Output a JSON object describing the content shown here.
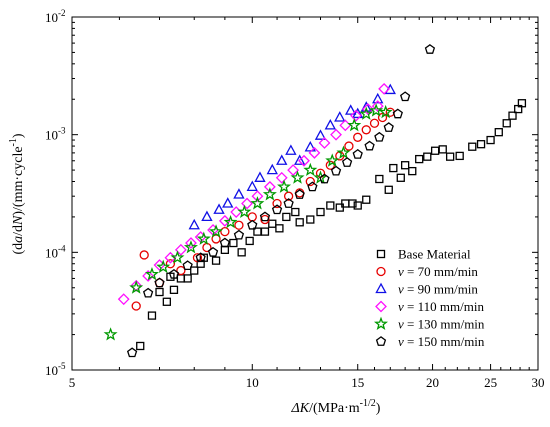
{
  "chart_data": {
    "type": "scatter",
    "title": "",
    "x_axis": {
      "label_italic": "ΔK",
      "label_rest": "/(MPa·m",
      "label_sup": "-1/2",
      "label_close": ")",
      "scale": "log",
      "range": [
        5,
        30
      ],
      "ticks": [
        5,
        10,
        15,
        20,
        25,
        30
      ],
      "tick_labels": [
        "5",
        "10",
        "15",
        "20",
        "25",
        "30"
      ]
    },
    "y_axis": {
      "label_open": "(d",
      "label_a": "a",
      "label_mid": "/d",
      "label_N": "N",
      "label_rest": ")/(mm·cycle",
      "label_sup": "-1",
      "label_close": ")",
      "scale": "log",
      "range": [
        1e-05,
        0.01
      ],
      "ticks": [
        1e-05,
        0.0001,
        0.001,
        0.01
      ],
      "tick_bases": [
        "10",
        "10",
        "10",
        "10"
      ],
      "tick_exps": [
        "-5",
        "-4",
        "-3",
        "-2"
      ]
    },
    "grid": false,
    "legend_position": "bottom-right",
    "series": [
      {
        "name": "Base Material",
        "legend_italic": "",
        "legend_text": "Base Material",
        "marker": "square",
        "color": "#000000",
        "points": [
          [
            6.5,
            1.6e-05
          ],
          [
            6.8,
            2.9e-05
          ],
          [
            7.0,
            4.6e-05
          ],
          [
            7.2,
            3.8e-05
          ],
          [
            7.3,
            6.2e-05
          ],
          [
            7.4,
            4.8e-05
          ],
          [
            7.6,
            6e-05
          ],
          [
            7.8,
            6e-05
          ],
          [
            8.0,
            7e-05
          ],
          [
            8.2,
            8e-05
          ],
          [
            8.3,
            9e-05
          ],
          [
            8.7,
            8.5e-05
          ],
          [
            9.0,
            0.000105
          ],
          [
            9.3,
            0.00012
          ],
          [
            9.6,
            0.0001
          ],
          [
            9.9,
            0.000125
          ],
          [
            10.2,
            0.00015
          ],
          [
            10.5,
            0.00015
          ],
          [
            10.8,
            0.000175
          ],
          [
            11.1,
            0.00016
          ],
          [
            11.4,
            0.0002
          ],
          [
            11.8,
            0.00022
          ],
          [
            12.0,
            0.00018
          ],
          [
            12.5,
            0.00019
          ],
          [
            13.0,
            0.00022
          ],
          [
            13.5,
            0.00025
          ],
          [
            14.0,
            0.00024
          ],
          [
            14.3,
            0.00026
          ],
          [
            14.7,
            0.00026
          ],
          [
            15.0,
            0.00025
          ],
          [
            15.5,
            0.00028
          ],
          [
            16.3,
            0.00042
          ],
          [
            16.9,
            0.00034
          ],
          [
            17.2,
            0.00052
          ],
          [
            17.7,
            0.00043
          ],
          [
            18.0,
            0.00055
          ],
          [
            18.5,
            0.00049
          ],
          [
            19.0,
            0.00062
          ],
          [
            19.6,
            0.00065
          ],
          [
            20.2,
            0.00073
          ],
          [
            20.8,
            0.00075
          ],
          [
            21.4,
            0.00065
          ],
          [
            22.2,
            0.00066
          ],
          [
            23.3,
            0.00079
          ],
          [
            24.1,
            0.00083
          ],
          [
            25.0,
            0.0009
          ],
          [
            25.8,
            0.00105
          ],
          [
            26.6,
            0.00125
          ],
          [
            27.2,
            0.00145
          ],
          [
            27.8,
            0.00165
          ],
          [
            28.2,
            0.00185
          ]
        ]
      },
      {
        "name": "v = 70 mm/min",
        "legend_italic": "v",
        "legend_text": " = 70 mm/min",
        "marker": "circle",
        "color": "#e60000",
        "points": [
          [
            6.4,
            3.5e-05
          ],
          [
            6.6,
            9.5e-05
          ],
          [
            7.0,
            5.5e-05
          ],
          [
            7.3,
            8e-05
          ],
          [
            7.6,
            7e-05
          ],
          [
            8.1,
            9e-05
          ],
          [
            8.4,
            0.00011
          ],
          [
            8.7,
            0.00013
          ],
          [
            9.0,
            0.00015
          ],
          [
            9.5,
            0.00017
          ],
          [
            10.0,
            0.0002
          ],
          [
            10.5,
            0.00019
          ],
          [
            11.0,
            0.00026
          ],
          [
            11.5,
            0.0003
          ],
          [
            12.0,
            0.00032
          ],
          [
            12.5,
            0.0004
          ],
          [
            13.0,
            0.00047
          ],
          [
            13.5,
            0.00055
          ],
          [
            14.0,
            0.00066
          ],
          [
            14.5,
            0.0008
          ],
          [
            15.0,
            0.00095
          ],
          [
            15.5,
            0.0011
          ],
          [
            16.0,
            0.00125
          ],
          [
            16.5,
            0.0014
          ],
          [
            17.0,
            0.00155
          ]
        ]
      },
      {
        "name": "v = 90 mm/min",
        "legend_italic": "v",
        "legend_text": " = 90 mm/min",
        "marker": "triangle",
        "color": "#1010e6",
        "points": [
          [
            8.0,
            0.00017
          ],
          [
            8.4,
            0.0002
          ],
          [
            8.8,
            0.00023
          ],
          [
            9.1,
            0.00026
          ],
          [
            9.5,
            0.00031
          ],
          [
            10.0,
            0.00036
          ],
          [
            10.3,
            0.00043
          ],
          [
            10.8,
            0.0005
          ],
          [
            11.2,
            0.0006
          ],
          [
            11.6,
            0.00073
          ],
          [
            12.0,
            0.0006
          ],
          [
            12.5,
            0.00078
          ],
          [
            13.0,
            0.00098
          ],
          [
            13.5,
            0.0012
          ],
          [
            14.0,
            0.0014
          ],
          [
            14.6,
            0.0016
          ],
          [
            15.0,
            0.0015
          ],
          [
            15.5,
            0.0017
          ],
          [
            16.2,
            0.002
          ],
          [
            17.0,
            0.0024
          ]
        ]
      },
      {
        "name": "v = 110 mm/min",
        "legend_italic": "v",
        "legend_text": " = 110 mm/min",
        "marker": "diamond",
        "color": "#ff10ff",
        "points": [
          [
            6.1,
            4e-05
          ],
          [
            6.4,
            5.2e-05
          ],
          [
            6.7,
            6.3e-05
          ],
          [
            7.0,
            7.8e-05
          ],
          [
            7.3,
            9e-05
          ],
          [
            7.6,
            0.000105
          ],
          [
            7.9,
            0.00012
          ],
          [
            8.2,
            0.000135
          ],
          [
            8.6,
            0.000155
          ],
          [
            9.0,
            0.000185
          ],
          [
            9.4,
            0.00022
          ],
          [
            9.8,
            0.00026
          ],
          [
            10.2,
            0.0003
          ],
          [
            10.7,
            0.00036
          ],
          [
            11.2,
            0.00043
          ],
          [
            11.7,
            0.0005
          ],
          [
            12.2,
            0.0006
          ],
          [
            12.7,
            0.0007
          ],
          [
            13.2,
            0.00085
          ],
          [
            13.8,
            0.001
          ],
          [
            14.3,
            0.0012
          ],
          [
            14.9,
            0.00145
          ],
          [
            15.6,
            0.00165
          ],
          [
            16.2,
            0.00175
          ],
          [
            16.6,
            0.00245
          ]
        ]
      },
      {
        "name": "v = 130 mm/min",
        "legend_italic": "v",
        "legend_text": " = 130 mm/min",
        "marker": "star",
        "color": "#009900",
        "points": [
          [
            5.8,
            2e-05
          ],
          [
            6.4,
            5e-05
          ],
          [
            6.8,
            6.5e-05
          ],
          [
            7.1,
            7.5e-05
          ],
          [
            7.5,
            9e-05
          ],
          [
            7.9,
            0.00011
          ],
          [
            8.3,
            0.00013
          ],
          [
            8.7,
            0.00015
          ],
          [
            9.2,
            0.00018
          ],
          [
            9.7,
            0.00022
          ],
          [
            10.2,
            0.00026
          ],
          [
            10.7,
            0.00031
          ],
          [
            11.3,
            0.00036
          ],
          [
            11.9,
            0.00043
          ],
          [
            12.5,
            0.0005
          ],
          [
            13.0,
            0.00043
          ],
          [
            13.6,
            0.0006
          ],
          [
            14.2,
            0.0007
          ],
          [
            14.8,
            0.0012
          ],
          [
            15.5,
            0.0015
          ],
          [
            16.1,
            0.0016
          ],
          [
            16.7,
            0.00155
          ]
        ]
      },
      {
        "name": "v = 150 mm/min",
        "legend_italic": "v",
        "legend_text": " = 150 mm/min",
        "marker": "pentagon",
        "color": "#000000",
        "points": [
          [
            6.3,
            1.4e-05
          ],
          [
            6.7,
            4.5e-05
          ],
          [
            7.0,
            5.5e-05
          ],
          [
            7.4,
            6.5e-05
          ],
          [
            7.8,
            7.7e-05
          ],
          [
            8.2,
            9e-05
          ],
          [
            8.6,
            0.0001
          ],
          [
            9.0,
            0.00012
          ],
          [
            9.5,
            0.00014
          ],
          [
            10.0,
            0.00017
          ],
          [
            10.5,
            0.0002
          ],
          [
            11.0,
            0.00023
          ],
          [
            11.5,
            0.00026
          ],
          [
            12.0,
            0.00031
          ],
          [
            12.6,
            0.00036
          ],
          [
            13.2,
            0.00042
          ],
          [
            13.8,
            0.00049
          ],
          [
            14.4,
            0.00058
          ],
          [
            15.0,
            0.00068
          ],
          [
            15.7,
            0.0008
          ],
          [
            16.3,
            0.00095
          ],
          [
            16.9,
            0.00115
          ],
          [
            17.5,
            0.0015
          ],
          [
            18.0,
            0.0021
          ],
          [
            19.8,
            0.0053
          ]
        ]
      }
    ]
  }
}
